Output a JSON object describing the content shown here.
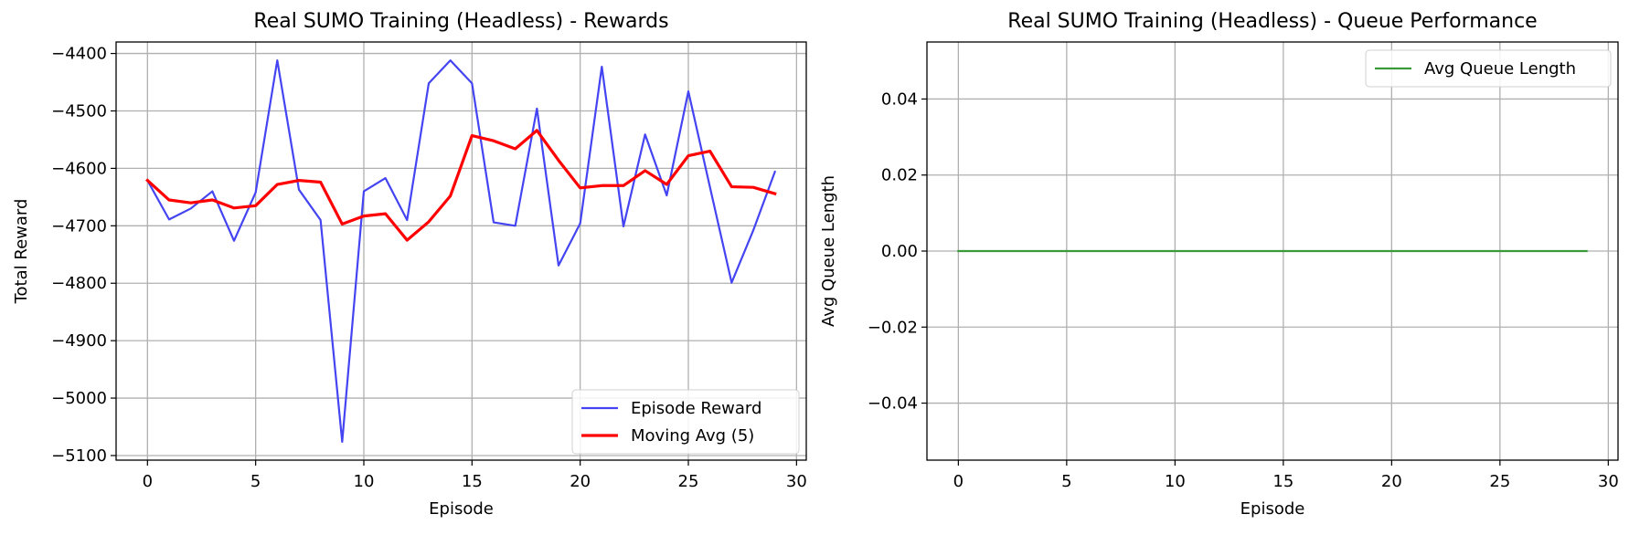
{
  "chart_data": [
    {
      "type": "line",
      "title": "Real SUMO Training (Headless) - Rewards",
      "xlabel": "Episode",
      "ylabel": "Total Reward",
      "xlim": [
        -1.45,
        30.45
      ],
      "ylim": [
        -5108,
        -4380
      ],
      "xticks": [
        0,
        5,
        10,
        15,
        20,
        25,
        30
      ],
      "xtick_labels": [
        "0",
        "5",
        "10",
        "15",
        "20",
        "25",
        "30"
      ],
      "yticks": [
        -4400,
        -4500,
        -4600,
        -4700,
        -4800,
        -4900,
        -5000,
        -5100
      ],
      "ytick_labels": [
        "−4400",
        "−4500",
        "−4600",
        "−4700",
        "−4800",
        "−4900",
        "−5000",
        "−5100"
      ],
      "grid": true,
      "legend_position": "lower right",
      "series": [
        {
          "name": "Episode Reward",
          "color": "#4444f2",
          "x": [
            0,
            1,
            2,
            3,
            4,
            5,
            6,
            7,
            8,
            9,
            10,
            11,
            12,
            13,
            14,
            15,
            16,
            17,
            18,
            19,
            20,
            21,
            22,
            23,
            24,
            25,
            26,
            27,
            28,
            29
          ],
          "values": [
            -4621,
            -4689,
            -4670,
            -4640,
            -4726,
            -4642,
            -4412,
            -4637,
            -4690,
            -5076,
            -4640,
            -4617,
            -4690,
            -4452,
            -4412,
            -4452,
            -4694,
            -4700,
            -4496,
            -4769,
            -4696,
            -4423,
            -4701,
            -4541,
            -4647,
            -4466,
            -4633,
            -4799,
            -4708,
            -4606
          ]
        },
        {
          "name": "Moving Avg (5)",
          "color": "#ff0000",
          "x": [
            0,
            1,
            2,
            3,
            4,
            5,
            6,
            7,
            8,
            9,
            10,
            11,
            12,
            13,
            14,
            15,
            16,
            17,
            18,
            19,
            20,
            21,
            22,
            23,
            24,
            25,
            26,
            27,
            28,
            29
          ],
          "values": [
            -4621,
            -4655,
            -4660,
            -4655,
            -4669,
            -4665,
            -4628,
            -4621,
            -4624,
            -4697,
            -4683,
            -4679,
            -4725,
            -4693,
            -4648,
            -4543,
            -4552,
            -4566,
            -4534,
            -4586,
            -4634,
            -4630,
            -4630,
            -4604,
            -4628,
            -4578,
            -4570,
            -4632,
            -4633,
            -4644
          ]
        }
      ]
    },
    {
      "type": "line",
      "title": "Real SUMO Training (Headless) - Queue Performance",
      "xlabel": "Episode",
      "ylabel": "Avg Queue Length",
      "xlim": [
        -1.45,
        30.45
      ],
      "ylim": [
        -0.055,
        0.055
      ],
      "xticks": [
        0,
        5,
        10,
        15,
        20,
        25,
        30
      ],
      "xtick_labels": [
        "0",
        "5",
        "10",
        "15",
        "20",
        "25",
        "30"
      ],
      "yticks": [
        0.04,
        0.02,
        0.0,
        -0.02,
        -0.04
      ],
      "ytick_labels": [
        "0.04",
        "0.02",
        "0.00",
        "−0.02",
        "−0.04"
      ],
      "grid": true,
      "legend_position": "upper right",
      "series": [
        {
          "name": "Avg Queue Length",
          "color": "#3a9a3a",
          "x": [
            0,
            1,
            2,
            3,
            4,
            5,
            6,
            7,
            8,
            9,
            10,
            11,
            12,
            13,
            14,
            15,
            16,
            17,
            18,
            19,
            20,
            21,
            22,
            23,
            24,
            25,
            26,
            27,
            28,
            29
          ],
          "values": [
            0,
            0,
            0,
            0,
            0,
            0,
            0,
            0,
            0,
            0,
            0,
            0,
            0,
            0,
            0,
            0,
            0,
            0,
            0,
            0,
            0,
            0,
            0,
            0,
            0,
            0,
            0,
            0,
            0,
            0
          ]
        }
      ]
    }
  ]
}
